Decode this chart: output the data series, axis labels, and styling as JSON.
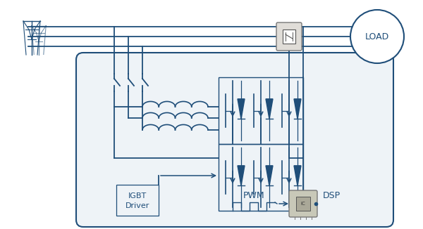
{
  "bg_color": "#ffffff",
  "line_color": "#1f4e79",
  "box_fill": "#ffffff",
  "main_box_fill": "#eef3f7",
  "text_color": "#1f4e79",
  "igbt_label1": "IGBT",
  "igbt_label2": "Driver",
  "pwm_label": "PWM",
  "dsp_label": "DSP",
  "load_label": "LOAD",
  "lw": 1.3
}
